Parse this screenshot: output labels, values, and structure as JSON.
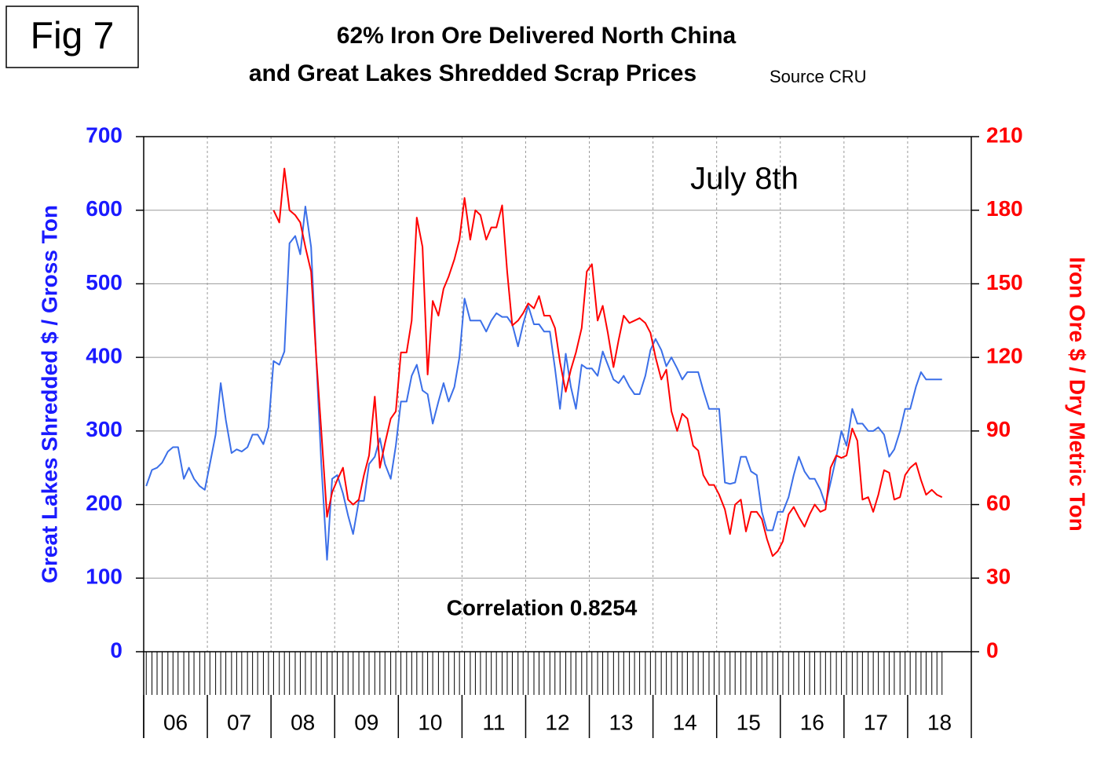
{
  "chart_data": {
    "type": "line",
    "fig_label": "Fig 7",
    "title": "62% Iron Ore Delivered North China",
    "subtitle": "and Great Lakes Shredded Scrap Prices",
    "source": "Source CRU",
    "annotations": [
      "July 8th",
      "Correlation 0.8254"
    ],
    "y_label": "Great Lakes Shredded $ / Gross Ton",
    "y2_label": "Iron Ore $ / Dry Metric Ton",
    "xlim": [
      6,
      19
    ],
    "xticks": [
      {
        "value": 6,
        "label": "06"
      },
      {
        "value": 7,
        "label": "07"
      },
      {
        "value": 8,
        "label": "08"
      },
      {
        "value": 9,
        "label": "09"
      },
      {
        "value": 10,
        "label": "10"
      },
      {
        "value": 11,
        "label": "11"
      },
      {
        "value": 12,
        "label": "12"
      },
      {
        "value": 13,
        "label": "13"
      },
      {
        "value": 14,
        "label": "14"
      },
      {
        "value": 15,
        "label": "15"
      },
      {
        "value": 16,
        "label": "16"
      },
      {
        "value": 17,
        "label": "17"
      },
      {
        "value": 18,
        "label": "18"
      }
    ],
    "ylim": [
      0,
      700
    ],
    "yticks": [
      0,
      100,
      200,
      300,
      400,
      500,
      600,
      700
    ],
    "y2lim": [
      0,
      210
    ],
    "y2ticks": [
      0,
      30,
      60,
      90,
      120,
      150,
      180,
      210
    ],
    "grid": true,
    "x": [
      6.04,
      6.13,
      6.21,
      6.29,
      6.38,
      6.46,
      6.54,
      6.63,
      6.71,
      6.79,
      6.88,
      6.96,
      7.04,
      7.13,
      7.21,
      7.29,
      7.38,
      7.46,
      7.54,
      7.63,
      7.71,
      7.79,
      7.88,
      7.96,
      8.04,
      8.13,
      8.21,
      8.29,
      8.38,
      8.46,
      8.54,
      8.63,
      8.71,
      8.79,
      8.88,
      8.96,
      9.04,
      9.13,
      9.21,
      9.29,
      9.38,
      9.46,
      9.54,
      9.63,
      9.71,
      9.79,
      9.88,
      9.96,
      10.04,
      10.13,
      10.21,
      10.29,
      10.38,
      10.46,
      10.54,
      10.63,
      10.71,
      10.79,
      10.88,
      10.96,
      11.04,
      11.13,
      11.21,
      11.29,
      11.38,
      11.46,
      11.54,
      11.63,
      11.71,
      11.79,
      11.88,
      11.96,
      12.04,
      12.13,
      12.21,
      12.29,
      12.38,
      12.46,
      12.54,
      12.63,
      12.71,
      12.79,
      12.88,
      12.96,
      13.04,
      13.13,
      13.21,
      13.29,
      13.38,
      13.46,
      13.54,
      13.63,
      13.71,
      13.79,
      13.88,
      13.96,
      14.04,
      14.13,
      14.21,
      14.29,
      14.38,
      14.46,
      14.54,
      14.63,
      14.71,
      14.79,
      14.88,
      14.96,
      15.04,
      15.13,
      15.21,
      15.29,
      15.38,
      15.46,
      15.54,
      15.63,
      15.71,
      15.79,
      15.88,
      15.96,
      16.04,
      16.13,
      16.21,
      16.29,
      16.38,
      16.46,
      16.54,
      16.63,
      16.71,
      16.79,
      16.88,
      16.96,
      17.04,
      17.13,
      17.21,
      17.29,
      17.38,
      17.46,
      17.54,
      17.63,
      17.71,
      17.79,
      17.88,
      17.96,
      18.04,
      18.13,
      18.21,
      18.29,
      18.38,
      18.46,
      18.54
    ],
    "series": [
      {
        "name": "Great Lakes Shredded",
        "color": "#3b6fe8",
        "axis": "y",
        "values": [
          225,
          247,
          250,
          257,
          272,
          278,
          278,
          235,
          250,
          235,
          225,
          220,
          255,
          295,
          365,
          315,
          270,
          275,
          272,
          278,
          295,
          295,
          282,
          305,
          395,
          390,
          408,
          555,
          565,
          540,
          605,
          550,
          400,
          255,
          125,
          235,
          240,
          215,
          185,
          160,
          205,
          205,
          255,
          265,
          290,
          255,
          235,
          280,
          340,
          340,
          375,
          390,
          355,
          350,
          310,
          340,
          365,
          340,
          360,
          400,
          480,
          450,
          450,
          450,
          435,
          450,
          460,
          455,
          455,
          445,
          415,
          445,
          470,
          445,
          445,
          435,
          435,
          385,
          330,
          405,
          360,
          330,
          390,
          385,
          385,
          375,
          408,
          390,
          370,
          365,
          375,
          360,
          350,
          350,
          375,
          410,
          425,
          410,
          388,
          400,
          385,
          370,
          380,
          380,
          380,
          355,
          330,
          330,
          330,
          230,
          228,
          230,
          265,
          265,
          245,
          240,
          190,
          165,
          165,
          190,
          190,
          210,
          240,
          265,
          245,
          235,
          235,
          220,
          200,
          230,
          265,
          300,
          280,
          330,
          310,
          310,
          300,
          300,
          305,
          295,
          265,
          275,
          300,
          330,
          330,
          360,
          380,
          370,
          370,
          370,
          370
        ]
      },
      {
        "name": "Iron Ore",
        "color": "#ff0000",
        "axis": "y2",
        "values": [
          null,
          null,
          null,
          null,
          null,
          null,
          null,
          null,
          null,
          null,
          null,
          null,
          null,
          null,
          null,
          null,
          null,
          null,
          null,
          null,
          null,
          null,
          null,
          null,
          180,
          175,
          197,
          180,
          178,
          175,
          165,
          155,
          120,
          90,
          55,
          65,
          70,
          75,
          62,
          60,
          62,
          72,
          80,
          104,
          75,
          85,
          95,
          98,
          122,
          122,
          135,
          177,
          165,
          113,
          143,
          137,
          148,
          153,
          160,
          168,
          185,
          168,
          180,
          178,
          168,
          173,
          173,
          182,
          155,
          133,
          135,
          138,
          142,
          140,
          145,
          137,
          137,
          132,
          118,
          106,
          115,
          122,
          132,
          155,
          158,
          135,
          141,
          130,
          116,
          127,
          137,
          134,
          135,
          136,
          134,
          130,
          120,
          111,
          115,
          98,
          90,
          97,
          95,
          84,
          82,
          72,
          68,
          68,
          64,
          58,
          48,
          60,
          62,
          49,
          57,
          57,
          54,
          46,
          39,
          41,
          45,
          56,
          59,
          55,
          51,
          56,
          60,
          57,
          58,
          75,
          80,
          79,
          80,
          91,
          86,
          62,
          63,
          57,
          64,
          74,
          73,
          62,
          63,
          72,
          75,
          77,
          70,
          64,
          66,
          64,
          63
        ]
      }
    ]
  }
}
